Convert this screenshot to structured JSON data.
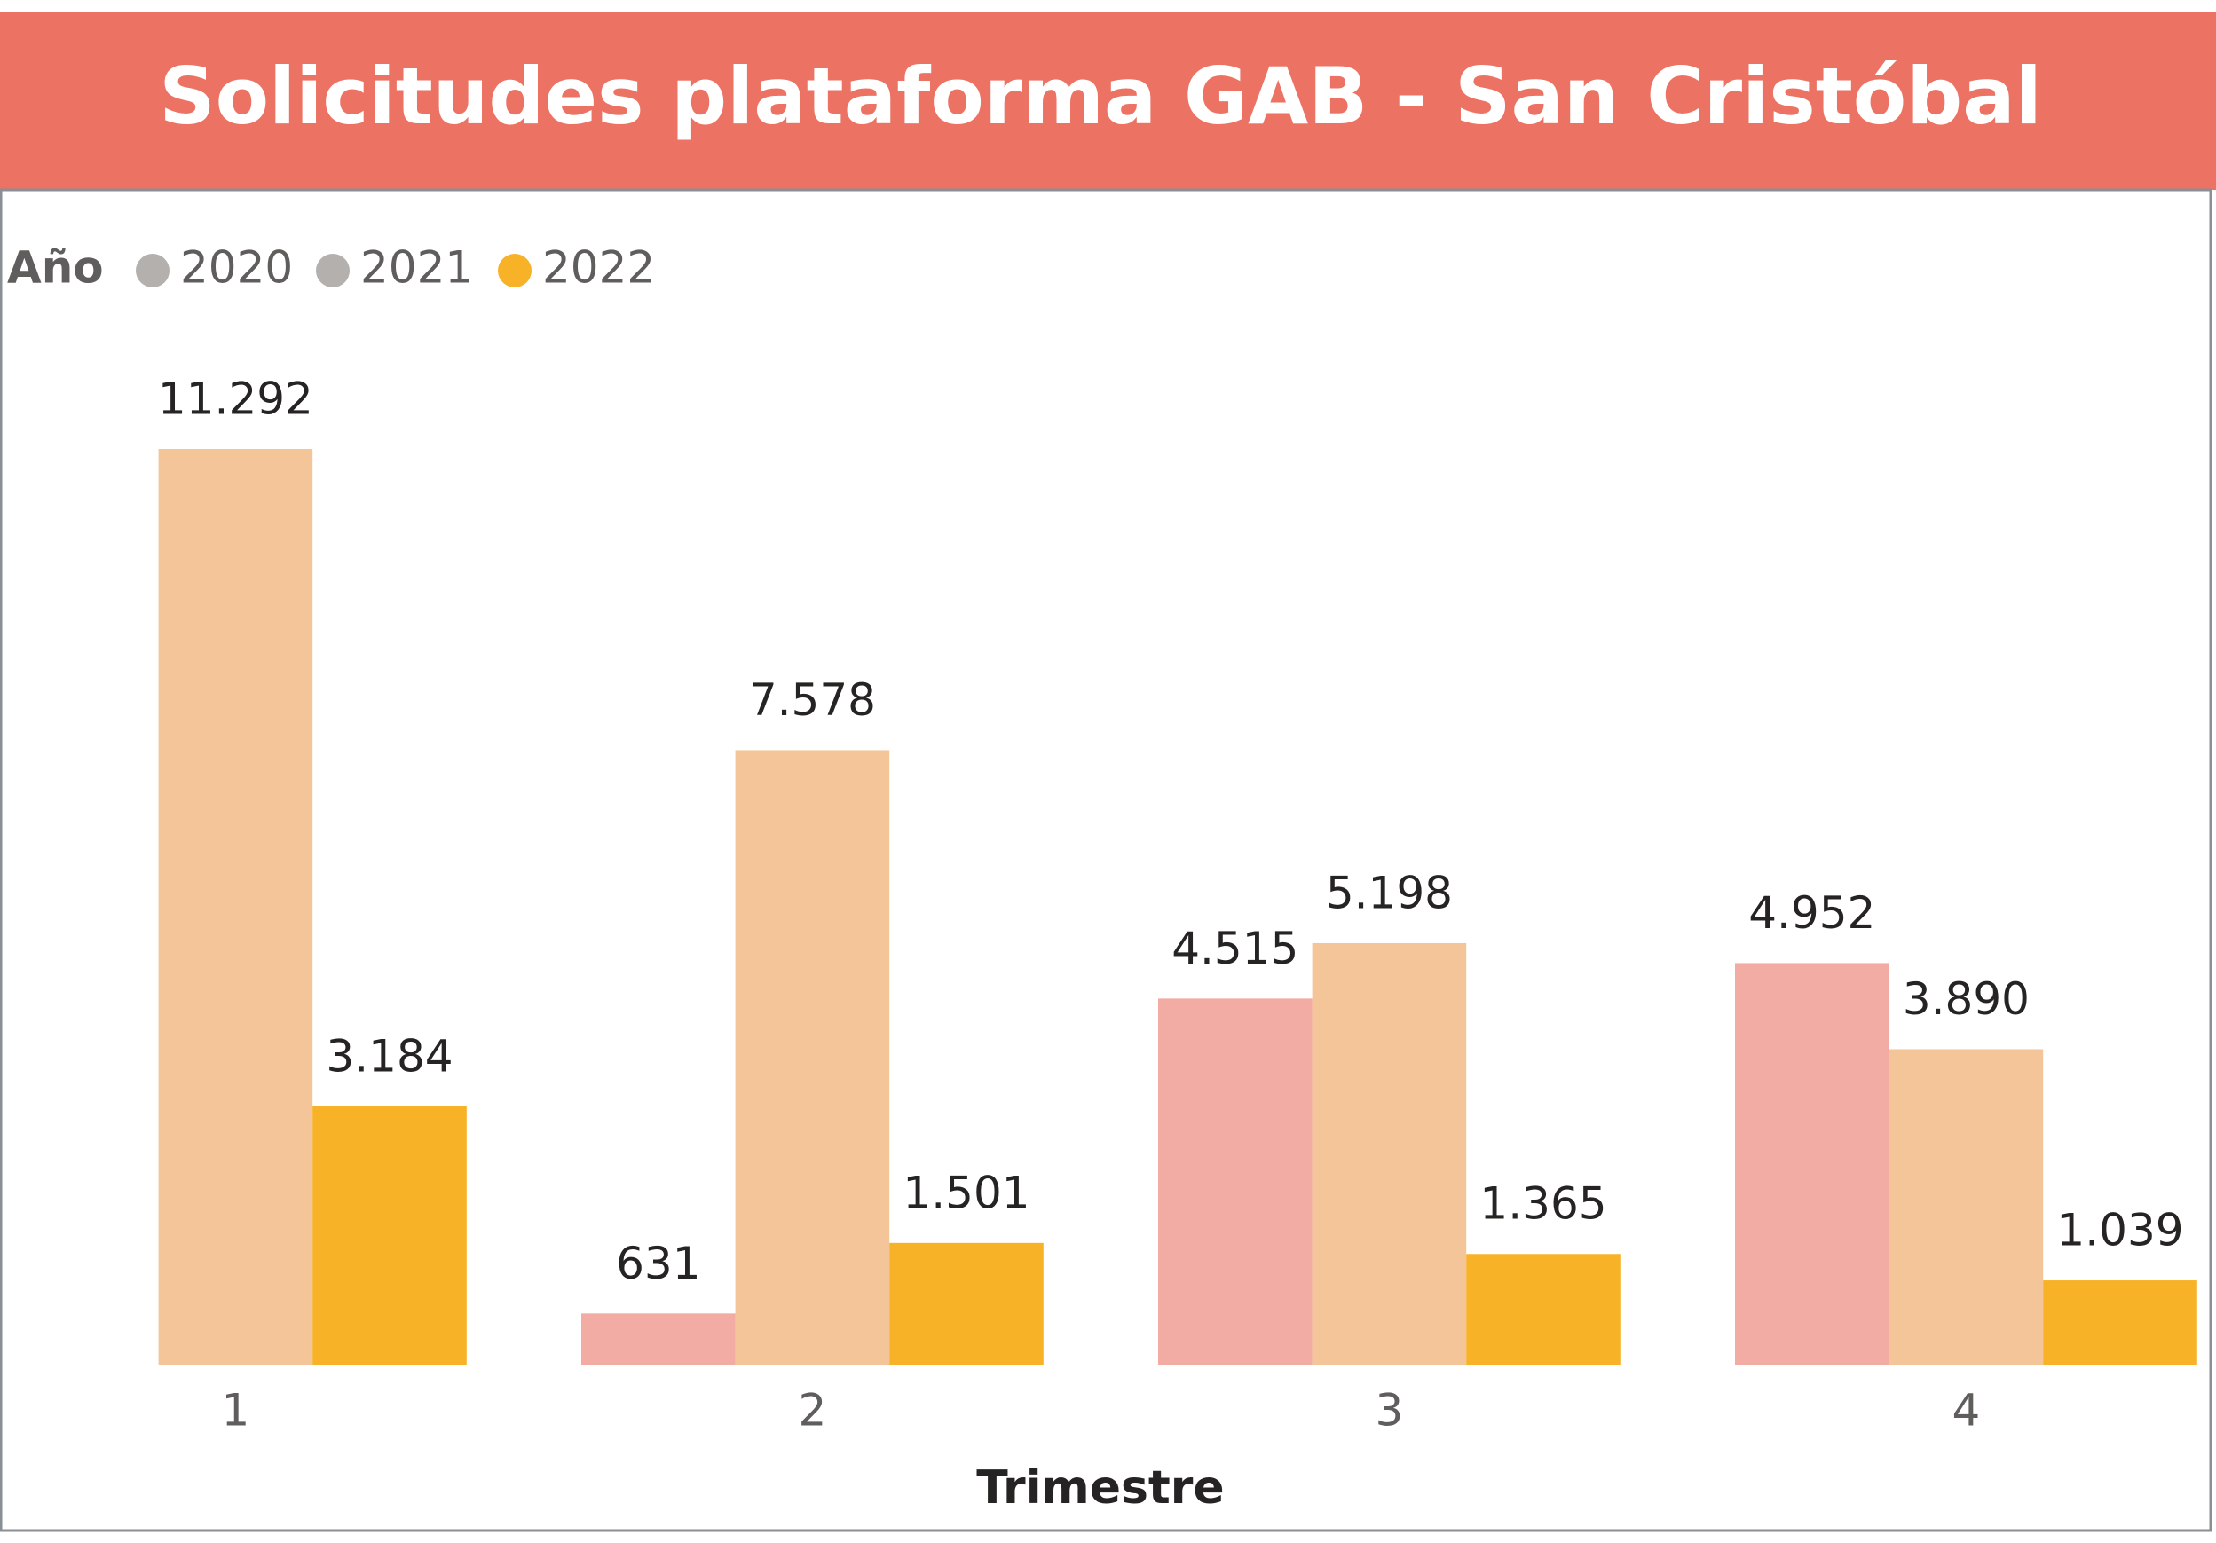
{
  "chart_data": {
    "type": "bar",
    "title": "Solicitudes plataforma GAB - San Cristóbal",
    "legend_title": "Año",
    "x_label": "Trimestre",
    "categories": [
      "1",
      "2",
      "3",
      "4"
    ],
    "series": [
      {
        "name": "2020",
        "color": "#f2aca4",
        "legend_color": "#b3b0ad",
        "values": [
          null,
          631,
          4515,
          4952
        ],
        "value_labels": [
          null,
          "631",
          "4.515",
          "4.952"
        ]
      },
      {
        "name": "2021",
        "color": "#f5c59a",
        "legend_color": "#b3b0ad",
        "values": [
          11292,
          7578,
          5198,
          3890
        ],
        "value_labels": [
          "11.292",
          "7.578",
          "5.198",
          "3.890"
        ]
      },
      {
        "name": "2022",
        "color": "#f7b228",
        "legend_color": "#f7b228",
        "values": [
          3184,
          1501,
          1365,
          1039
        ],
        "value_labels": [
          "3.184",
          "1.501",
          "1.365",
          "1.039"
        ]
      }
    ],
    "header_color": "#ec7263"
  }
}
